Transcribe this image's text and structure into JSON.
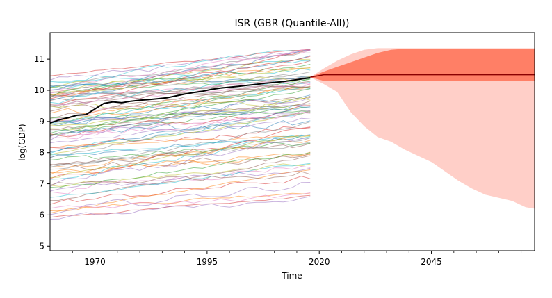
{
  "chart_data": {
    "type": "line",
    "title": "ISR (GBR (Quantile-All))",
    "xlabel": "Time",
    "ylabel": "log(GDP)",
    "xlim": [
      1960,
      2068
    ],
    "ylim": [
      4.85,
      11.85
    ],
    "x_ticks": [
      1970,
      1995,
      2020,
      2045
    ],
    "y_ticks": [
      5,
      6,
      7,
      8,
      9,
      10,
      11
    ],
    "grid": false,
    "legend": "none",
    "history_years": [
      1960,
      2018
    ],
    "focus_series": {
      "color": "#000000",
      "x": [
        1960,
        1962,
        1964,
        1966,
        1968,
        1970,
        1972,
        1974,
        1976,
        1978,
        1980,
        1982,
        1984,
        1986,
        1988,
        1990,
        1992,
        1994,
        1996,
        1998,
        2000,
        2002,
        2004,
        2006,
        2008,
        2010,
        2012,
        2014,
        2016,
        2018
      ],
      "values": [
        8.95,
        9.05,
        9.12,
        9.2,
        9.22,
        9.4,
        9.58,
        9.63,
        9.6,
        9.65,
        9.68,
        9.7,
        9.73,
        9.76,
        9.82,
        9.88,
        9.93,
        9.97,
        10.03,
        10.07,
        10.1,
        10.13,
        10.16,
        10.19,
        10.23,
        10.25,
        10.28,
        10.32,
        10.36,
        10.4
      ]
    },
    "peer_series_count": 90,
    "peer_color": [
      "#1f77b4",
      "#ff7f0e",
      "#2ca02c",
      "#d62728",
      "#9467bd",
      "#8c564b",
      "#e377c2",
      "#7f7f7f",
      "#bcbd22",
      "#17becf"
    ],
    "peer_start_range": [
      5.8,
      10.5
    ],
    "peer_end_range": [
      6.5,
      11.3
    ],
    "forecast": {
      "x": [
        2018,
        2021,
        2024,
        2027,
        2030,
        2033,
        2036,
        2039,
        2042,
        2045,
        2048,
        2051,
        2054,
        2057,
        2060,
        2063,
        2066,
        2068
      ],
      "median": [
        10.42,
        10.5,
        10.5,
        10.5,
        10.5,
        10.5,
        10.5,
        10.5,
        10.5,
        10.5,
        10.5,
        10.5,
        10.5,
        10.5,
        10.5,
        10.5,
        10.5,
        10.5
      ],
      "inner_upper": [
        10.42,
        10.6,
        10.75,
        10.9,
        11.05,
        11.2,
        11.3,
        11.33,
        11.33,
        11.33,
        11.33,
        11.33,
        11.33,
        11.33,
        11.33,
        11.33,
        11.33,
        11.33
      ],
      "inner_lower": [
        10.42,
        10.3,
        10.3,
        10.3,
        10.3,
        10.3,
        10.3,
        10.3,
        10.3,
        10.3,
        10.3,
        10.3,
        10.3,
        10.3,
        10.3,
        10.3,
        10.3,
        10.3
      ],
      "outer_upper": [
        10.42,
        10.7,
        10.95,
        11.15,
        11.3,
        11.35,
        11.35,
        11.35,
        11.35,
        11.35,
        11.35,
        11.35,
        11.35,
        11.35,
        11.35,
        11.35,
        11.35,
        11.35
      ],
      "outer_lower": [
        10.42,
        10.2,
        9.95,
        9.3,
        8.85,
        8.5,
        8.35,
        8.1,
        7.9,
        7.7,
        7.4,
        7.1,
        6.85,
        6.65,
        6.55,
        6.45,
        6.25,
        6.2
      ],
      "median_color": "#8b0000",
      "inner_color": "#ff7f66",
      "outer_color": "#ffcfc8"
    }
  }
}
